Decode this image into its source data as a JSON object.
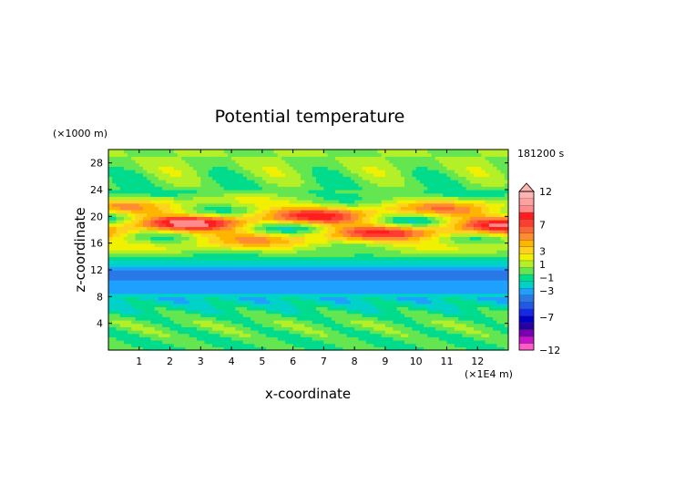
{
  "chart_data": {
    "type": "heatmap",
    "title": "Potential temperature",
    "xlabel": "x-coordinate",
    "ylabel": "z-coordinate",
    "x_unit": "(×1E4 m)",
    "y_unit": "(×1000 m)",
    "time_label": "181200 s",
    "xlim": [
      0,
      13
    ],
    "ylim": [
      0,
      30
    ],
    "x_ticks": [
      1,
      2,
      3,
      4,
      5,
      6,
      7,
      8,
      9,
      10,
      11,
      12
    ],
    "y_ticks": [
      4,
      8,
      12,
      16,
      20,
      24,
      28
    ],
    "colorbar": {
      "labels": [
        "12",
        "7",
        "3",
        "1",
        "−1",
        "−3",
        "−7",
        "−12"
      ],
      "label_values": [
        12,
        7,
        3,
        1,
        -1,
        -3,
        -7,
        -12
      ],
      "levels": [
        -12,
        -10,
        -9,
        -8,
        -7,
        -6,
        -5,
        -4,
        -3,
        -2,
        -1,
        0,
        1,
        2,
        3,
        4,
        5,
        6,
        7,
        8,
        9,
        10,
        11,
        12
      ],
      "colors": [
        "#ff5ac8",
        "#c814c8",
        "#7800b4",
        "#2800a0",
        "#0000c8",
        "#1428e6",
        "#1e5ae6",
        "#2878e6",
        "#1ea0ff",
        "#00d2c8",
        "#00dc8c",
        "#64e650",
        "#b4f028",
        "#f0f000",
        "#ffd21e",
        "#ffb400",
        "#ff8c32",
        "#ff6432",
        "#ff3c32",
        "#ff1e1e",
        "#ff8c8c",
        "#ffa0a0",
        "#ffb4b4"
      ],
      "extend_top": true
    },
    "layers": [
      {
        "z_range": [
          0,
          1.6
        ],
        "mean": 0.0,
        "note": "cyan-green near surface"
      },
      {
        "z_range": [
          1.6,
          6.5
        ],
        "mean": 0.6,
        "note": "yellow-green"
      },
      {
        "z_range": [
          6.5,
          8.5
        ],
        "mean": -1.5,
        "note": "green-cyan"
      },
      {
        "z_range": [
          8.5,
          14.5
        ],
        "mean": -3.6,
        "note": "blue"
      },
      {
        "z_range": [
          14.5,
          16.5
        ],
        "mean": 2.0,
        "note": "yellow-orange"
      },
      {
        "z_range": [
          16.5,
          18.5
        ],
        "mean": 4.0,
        "note": "orange"
      },
      {
        "z_range": [
          18.5,
          20.5
        ],
        "mean": 4.5,
        "note": "red/blue alternating"
      },
      {
        "z_range": [
          20.5,
          22.5
        ],
        "mean": 3.0,
        "note": "red/orange"
      },
      {
        "z_range": [
          22.5,
          24.5
        ],
        "mean": 0.0,
        "note": "green/cyan"
      },
      {
        "z_range": [
          24.5,
          30
        ],
        "mean": 1.0,
        "note": "yellow/green"
      }
    ]
  }
}
